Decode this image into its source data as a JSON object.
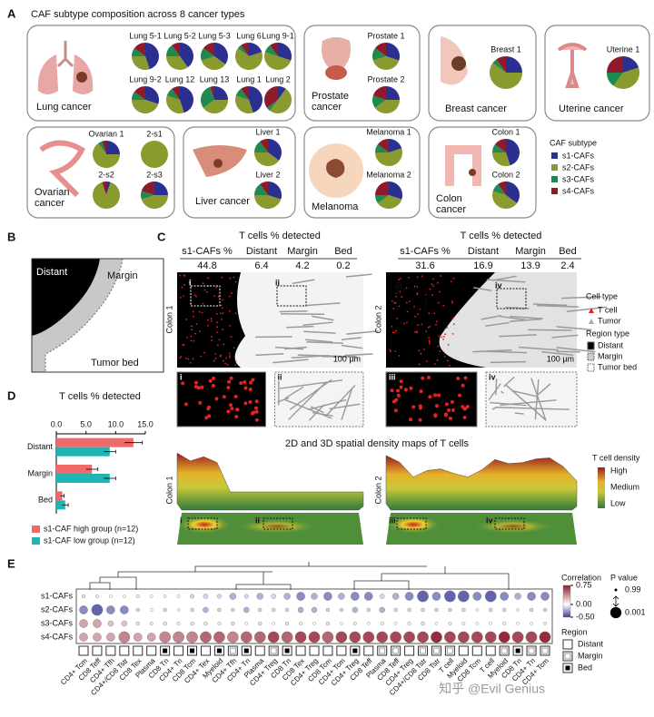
{
  "panel_letters": [
    "A",
    "B",
    "C",
    "D",
    "E"
  ],
  "panelA": {
    "title": "CAF subtype composition across 8 cancer types",
    "legend": {
      "title": "CAF subtype",
      "items": [
        {
          "name": "s1-CAFs",
          "color": "#2b2f8f"
        },
        {
          "name": "s2-CAFs",
          "color": "#8a9a2e"
        },
        {
          "name": "s3-CAFs",
          "color": "#1f8a4e"
        },
        {
          "name": "s4-CAFs",
          "color": "#8e1b2c"
        }
      ]
    },
    "groups": [
      {
        "label": [
          "Lung cancer"
        ],
        "pies": [
          {
            "name": "Lung 5-1",
            "values": [
              45,
              30,
              10,
              15
            ]
          },
          {
            "name": "Lung 5-2",
            "values": [
              40,
              35,
              15,
              10
            ]
          },
          {
            "name": "Lung 5-3",
            "values": [
              35,
              35,
              15,
              15
            ]
          },
          {
            "name": "Lung 6",
            "values": [
              20,
              65,
              5,
              10
            ]
          },
          {
            "name": "Lung 9-1",
            "values": [
              30,
              50,
              10,
              10
            ]
          },
          {
            "name": "Lung 9-2",
            "values": [
              30,
              45,
              10,
              15
            ]
          },
          {
            "name": "Lung 12",
            "values": [
              45,
              35,
              10,
              10
            ]
          },
          {
            "name": "Lung 13",
            "values": [
              25,
              40,
              30,
              5
            ]
          },
          {
            "name": "Lung 1",
            "values": [
              45,
              35,
              10,
              10
            ]
          },
          {
            "name": "Lung 2",
            "values": [
              10,
              50,
              5,
              35
            ]
          }
        ]
      },
      {
        "label": [
          "Prostate",
          "cancer"
        ],
        "pies": [
          {
            "name": "Prostate 1",
            "values": [
              30,
              40,
              15,
              15
            ]
          },
          {
            "name": "Prostate 2",
            "values": [
              25,
              40,
              15,
              20
            ]
          }
        ]
      },
      {
        "label": [
          "Breast cancer"
        ],
        "pies": [
          {
            "name": "Breast 1",
            "values": [
              25,
              60,
              5,
              10
            ]
          }
        ]
      },
      {
        "label": [
          "Uterine cancer"
        ],
        "pies": [
          {
            "name": "Uterine 1",
            "values": [
              20,
              40,
              15,
              25
            ]
          }
        ]
      },
      {
        "label": [
          "Ovarian",
          "cancer"
        ],
        "pies": [
          {
            "name": "Ovarian 1",
            "values": [
              25,
              65,
              5,
              5
            ]
          },
          {
            "name": "2-s1",
            "values": [
              0,
              100,
              0,
              0
            ]
          },
          {
            "name": "2-s2",
            "values": [
              5,
              90,
              0,
              5
            ]
          },
          {
            "name": "2-s3",
            "values": [
              25,
              45,
              10,
              20
            ]
          }
        ]
      },
      {
        "label": [
          "Liver cancer"
        ],
        "pies": [
          {
            "name": "Liver 1",
            "values": [
              35,
              40,
              15,
              10
            ]
          },
          {
            "name": "Liver 2",
            "values": [
              30,
              45,
              15,
              10
            ]
          }
        ]
      },
      {
        "label": [
          "Melanoma"
        ],
        "pies": [
          {
            "name": "Melanoma 1",
            "values": [
              20,
              55,
              10,
              15
            ]
          },
          {
            "name": "Melanoma 2",
            "values": [
              30,
              35,
              10,
              25
            ]
          }
        ]
      },
      {
        "label": [
          "Colon",
          "cancer"
        ],
        "pies": [
          {
            "name": "Colon 1",
            "values": [
              45,
              30,
              10,
              15
            ]
          },
          {
            "name": "Colon 2",
            "values": [
              35,
              45,
              10,
              10
            ]
          }
        ]
      }
    ]
  },
  "panelB": {
    "labels": [
      "Distant",
      "Margin",
      "Tumor bed"
    ]
  },
  "panelC": {
    "samples": [
      {
        "name": "Colon 1",
        "header": "T cells % detected",
        "columns": [
          "s1-CAFs %",
          "Distant",
          "Margin",
          "Bed"
        ],
        "values": [
          44.8,
          6.4,
          4.2,
          0.2
        ],
        "insets": [
          "i",
          "ii"
        ]
      },
      {
        "name": "Colon 2",
        "header": "T cells % detected",
        "columns": [
          "s1-CAFs %",
          "Distant",
          "Margin",
          "Bed"
        ],
        "values": [
          31.6,
          16.9,
          13.9,
          2.4
        ],
        "insets": [
          "iii",
          "iv"
        ]
      }
    ],
    "scale_bar": "100 µm",
    "cell_legend": {
      "title": "Cell type",
      "items": [
        "T cell",
        "Tumor"
      ]
    },
    "region_legend": {
      "title": "Region type",
      "items": [
        "Distant",
        "Margin",
        "Tumor bed"
      ]
    },
    "density": {
      "title": "2D and 3D spatial density maps of T cells",
      "legend_title": "T cell density",
      "levels": [
        "High",
        "Medium",
        "Low"
      ]
    }
  },
  "panelD": {
    "type": "hbar",
    "title": "T cells % detected",
    "categories": [
      "Distant",
      "Margin",
      "Bed"
    ],
    "series": [
      {
        "name": "s1-CAF high group (n=12)",
        "color": "#ef6b6b",
        "values": [
          13,
          6,
          1
        ],
        "errors": [
          1.5,
          1,
          0.3
        ]
      },
      {
        "name": "s1-CAF low group (n=12)",
        "color": "#1fb5b5",
        "values": [
          9,
          9,
          1.5
        ],
        "errors": [
          1,
          1,
          0.5
        ]
      }
    ],
    "xlim": [
      0,
      15
    ],
    "xticks": [
      {
        "value": 0,
        "label": "0.0"
      },
      {
        "value": 5,
        "label": "5.0"
      },
      {
        "value": 10,
        "label": "10.0"
      },
      {
        "value": 15,
        "label": "15.0"
      }
    ]
  },
  "panelE": {
    "rows": [
      "s1-CAFs",
      "s2-CAFs",
      "s3-CAFs",
      "s4-CAFs"
    ],
    "columns": [
      "CD4+ Tcm",
      "CD8 Teff",
      "CD4+ Tfh",
      "CD4+/CD8 Tstr",
      "CD8 Tex",
      "Plasma",
      "CD8 Tn",
      "CD4+ Tn",
      "CD8 Tcm",
      "CD4+ Tex",
      "Myeloid",
      "CD4+ Tfh",
      "CD4+ Tn",
      "Plasma",
      "CD4+ Treg",
      "CD8 Tn",
      "CD8 Tex",
      "CD4+ Treg",
      "CD8 Tcm",
      "CD4+ Tcm",
      "CD4+ Treg",
      "CD8 Teff",
      "Plasma",
      "CD8 Teff",
      "CD4+ Treg",
      "CD4+/CD8 Tstr",
      "CD8 Tstr",
      "T cell",
      "Myeloid",
      "CD8 Tcm",
      "T cell",
      "Myeloid",
      "CD8 Tn",
      "CD4+ Tn",
      "CD4+ Tcm"
    ],
    "regions": [
      "Distant",
      "Distant",
      "Distant",
      "Distant",
      "Distant",
      "Distant",
      "Bed",
      "Distant",
      "Bed",
      "Distant",
      "Bed",
      "Margin",
      "Bed",
      "Distant",
      "Margin",
      "Bed",
      "Distant",
      "Distant",
      "Distant",
      "Distant",
      "Bed",
      "Distant",
      "Margin",
      "Margin",
      "Distant",
      "Margin",
      "Margin",
      "Margin",
      "Distant",
      "Distant",
      "Distant",
      "Margin",
      "Bed",
      "Margin",
      "Margin"
    ],
    "correlation": [
      [
        0.1,
        0.05,
        0,
        0,
        0.05,
        0,
        0,
        0,
        -0.1,
        -0.1,
        -0.1,
        -0.2,
        -0.1,
        -0.2,
        -0.1,
        -0.2,
        -0.3,
        -0.2,
        -0.3,
        -0.2,
        -0.3,
        -0.3,
        -0.1,
        -0.2,
        -0.3,
        -0.4,
        -0.3,
        -0.4,
        -0.4,
        -0.3,
        -0.4,
        -0.3,
        -0.2,
        -0.3,
        -0.3
      ],
      [
        -0.3,
        -0.4,
        -0.3,
        -0.3,
        -0.1,
        0,
        -0.1,
        0,
        -0.1,
        -0.2,
        -0.1,
        -0.1,
        -0.2,
        -0.1,
        -0.1,
        -0.1,
        -0.2,
        -0.2,
        -0.1,
        -0.1,
        -0.2,
        -0.1,
        -0.2,
        -0.1,
        -0.1,
        -0.1,
        -0.1,
        -0.1,
        -0.1,
        0,
        -0.1,
        -0.1,
        0,
        -0.1,
        -0.1
      ],
      [
        0.3,
        0.3,
        0.2,
        0.2,
        0.1,
        0.05,
        0.1,
        0.05,
        0.1,
        0.1,
        0.05,
        0.1,
        0,
        0.1,
        0,
        0.1,
        0.05,
        0,
        0.1,
        0,
        0.05,
        0,
        0.05,
        0,
        0.05,
        0.1,
        0,
        0.05,
        0.05,
        0,
        0,
        0.05,
        0,
        0,
        0.05
      ],
      [
        0.3,
        0.3,
        0.3,
        0.4,
        0.3,
        0.3,
        0.4,
        0.4,
        0.4,
        0.5,
        0.5,
        0.4,
        0.5,
        0.5,
        0.6,
        0.5,
        0.6,
        0.6,
        0.5,
        0.6,
        0.6,
        0.6,
        0.6,
        0.6,
        0.6,
        0.6,
        0.7,
        0.6,
        0.6,
        0.6,
        0.6,
        0.7,
        0.6,
        0.6,
        0.7
      ]
    ],
    "p_values": [
      [
        0.5,
        0.7,
        0.9,
        0.9,
        0.6,
        0.9,
        0.9,
        0.9,
        0.3,
        0.2,
        0.3,
        0.05,
        0.3,
        0.05,
        0.2,
        0.05,
        0.01,
        0.05,
        0.01,
        0.05,
        0.01,
        0.01,
        0.2,
        0.05,
        0.01,
        0.001,
        0.01,
        0.001,
        0.001,
        0.01,
        0.001,
        0.01,
        0.05,
        0.01,
        0.01
      ],
      [
        0.01,
        0.001,
        0.01,
        0.01,
        0.5,
        0.9,
        0.5,
        0.9,
        0.5,
        0.1,
        0.5,
        0.5,
        0.1,
        0.5,
        0.5,
        0.5,
        0.1,
        0.1,
        0.5,
        0.5,
        0.1,
        0.5,
        0.1,
        0.5,
        0.5,
        0.5,
        0.5,
        0.5,
        0.5,
        0.9,
        0.5,
        0.5,
        0.9,
        0.5,
        0.5
      ],
      [
        0.01,
        0.01,
        0.1,
        0.1,
        0.5,
        0.7,
        0.5,
        0.7,
        0.5,
        0.5,
        0.7,
        0.5,
        0.9,
        0.5,
        0.9,
        0.5,
        0.7,
        0.9,
        0.5,
        0.9,
        0.7,
        0.9,
        0.7,
        0.9,
        0.7,
        0.5,
        0.9,
        0.7,
        0.7,
        0.9,
        0.9,
        0.7,
        0.9,
        0.9,
        0.7
      ],
      [
        0.01,
        0.01,
        0.01,
        0.001,
        0.01,
        0.01,
        0.001,
        0.001,
        0.001,
        0.001,
        0.001,
        0.001,
        0.001,
        0.001,
        0.001,
        0.001,
        0.001,
        0.001,
        0.001,
        0.001,
        0.001,
        0.001,
        0.001,
        0.001,
        0.001,
        0.001,
        0.001,
        0.001,
        0.001,
        0.001,
        0.001,
        0.001,
        0.001,
        0.001,
        0.001
      ]
    ],
    "color_legend": {
      "title": "Correlation",
      "lim": [
        -0.5,
        0.75
      ],
      "ticks": [
        0.75,
        {
          "value": 0,
          "label": "0.00"
        },
        {
          "value": -0.5,
          "label": "-0.50"
        }
      ],
      "colors": [
        "#3b3d9c",
        "#ffffff",
        "#8e1b2c"
      ]
    },
    "p_legend": {
      "title": "P value",
      "ticks": [
        0.99,
        0.001
      ]
    },
    "region_legend": {
      "title": "Region",
      "items": [
        "Distant",
        "Margin",
        "Bed"
      ]
    }
  },
  "watermark": "知乎 @Evil Genius"
}
